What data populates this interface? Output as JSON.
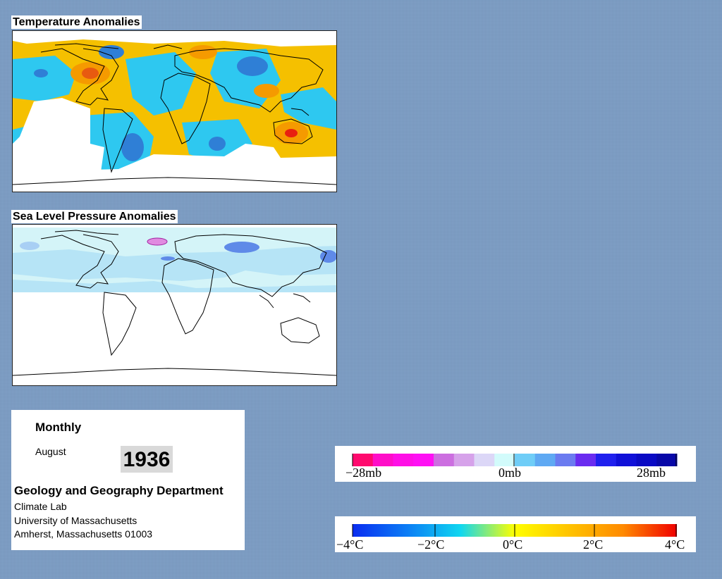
{
  "temperature_panel": {
    "title": "Temperature Anomalies"
  },
  "pressure_panel": {
    "title": "Sea Level Pressure Anomalies"
  },
  "info": {
    "frequency": "Monthly",
    "month": "August",
    "year": "1936",
    "department": "Geology and Geography Department",
    "lab": "Climate Lab",
    "university": "University of Massachusetts",
    "address": "Amherst, Massachusetts 01003"
  },
  "pressure_legend": {
    "labels": [
      "−28mb",
      "0mb",
      "28mb"
    ],
    "colors": [
      "#ff0a6e",
      "#ff0ec8",
      "#ff0fe6",
      "#ff10f4",
      "#cc6ee0",
      "#d6a2ea",
      "#dcd7f7",
      "#d2fbfb",
      "#6fcdf7",
      "#5fa9f3",
      "#6b7bf0",
      "#6a2cf0",
      "#2020ee",
      "#1010d8",
      "#0a0ac4",
      "#0808a8"
    ]
  },
  "temperature_legend": {
    "labels": [
      "−4°C",
      "−2°C",
      "0°C",
      "2°C",
      "4°C"
    ],
    "gradient": [
      "#0a2cf0",
      "#0b7cf5",
      "#10d7f0",
      "#ffff00",
      "#ffc400",
      "#ff8a00",
      "#f00000"
    ]
  },
  "colors": {
    "background": "#7b9cc4",
    "warm": "#f5c000",
    "hot": "#e85a10",
    "cool": "#2ec8f0",
    "cold": "#2f7fd6",
    "slp_light": "#d4f4f8",
    "slp_mid": "#b6e4f6",
    "slp_low": "#5f8ae8",
    "slp_high": "#e08be0"
  }
}
